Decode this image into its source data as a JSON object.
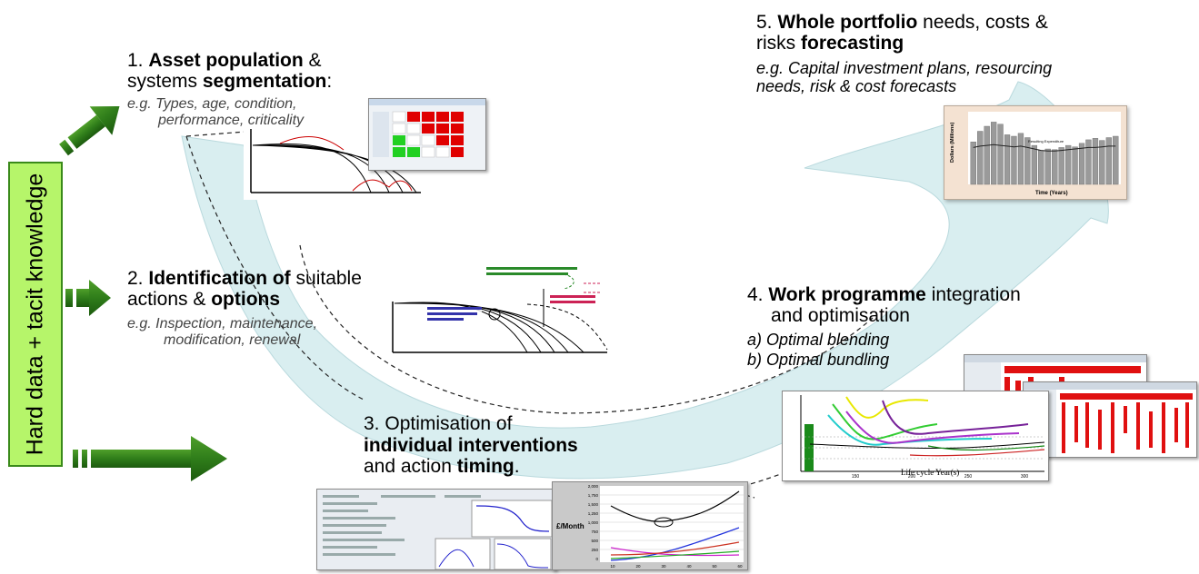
{
  "side_label": "Hard data + tacit knowledge",
  "steps": [
    {
      "num": "1.",
      "bold1": "Asset population",
      "mid1": " &",
      "line2_plain": "systems ",
      "bold2": "segmentation",
      "tail": ":",
      "example_line1": "e.g. Types, age, condition,",
      "example_line2": "performance, criticality"
    },
    {
      "num": "2.",
      "bold1": "Identification of",
      "mid1": " suitable",
      "line2_plain": "actions & ",
      "bold2": "options",
      "example_line1": "e.g. Inspection, maintenance,",
      "example_line2": "modification, renewal"
    },
    {
      "num": "3.",
      "line1": "Optimisation of",
      "bold2": "individual interventions",
      "line3_plain": "and action ",
      "bold3": "timing",
      "tail": "."
    },
    {
      "num": "4.",
      "bold1": "Work programme",
      "mid1": " integration",
      "line2": "and optimisation",
      "item_a": "a)  Optimal blending",
      "item_b": "b)  Optimal bundling"
    },
    {
      "num": "5.",
      "bold1": "Whole portfolio",
      "mid1": " needs, costs &",
      "line2_plain": "risks ",
      "bold2": "forecasting",
      "example_line1": "e.g. Capital investment plans, resourcing",
      "example_line2": "needs, risk & cost forecasts"
    }
  ],
  "forecast_chart": {
    "ylabel": "Dollars (Millions)",
    "xlabel": "Time (Years)",
    "legend": "Resulting Expenditure",
    "values": [
      60,
      75,
      82,
      88,
      85,
      70,
      68,
      72,
      66,
      55,
      48,
      50,
      49,
      52,
      55,
      53,
      58,
      63,
      65,
      62,
      66,
      68
    ],
    "line": [
      52,
      54,
      55,
      56,
      55,
      54,
      53,
      54,
      52,
      50,
      48,
      47,
      47,
      48,
      49,
      50,
      51,
      52,
      52,
      53,
      54,
      54
    ]
  },
  "timing_chart": {
    "ylabel": "£/Month",
    "yticks": [
      "2,000",
      "1,750",
      "1,500",
      "1,250",
      "1,000",
      "750",
      "500",
      "250",
      "0"
    ],
    "xticks": [
      "10",
      "20",
      "30",
      "40",
      "50",
      "60"
    ]
  },
  "bundling_chart": {
    "xlabel": "Life cycle Year(s)",
    "xticks": [
      "150",
      "200",
      "250",
      "300"
    ]
  },
  "colors": {
    "arrow_green": "#2f7d1a",
    "band_fill": "#d9eef0",
    "side_fill": "#b6f56a"
  }
}
